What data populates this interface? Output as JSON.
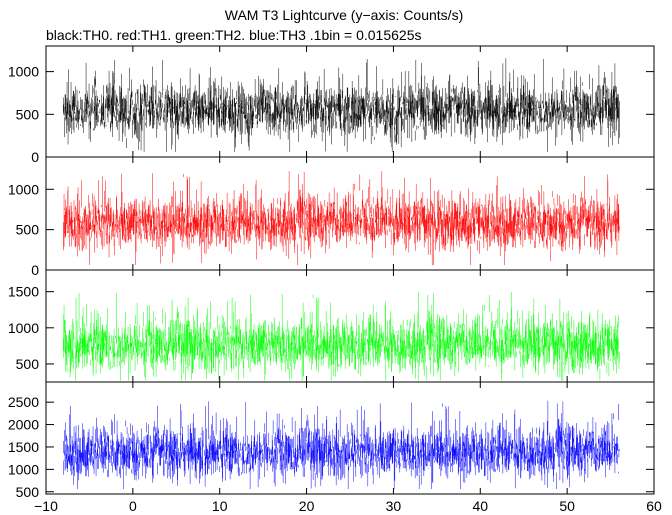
{
  "title": "WAM T3 Lightcurve (y−axis: Counts/s)",
  "subtitle": "black:TH0. red:TH1. green:TH2. blue:TH3 .1bin = 0.015625s",
  "chart_data": {
    "type": "line",
    "title": "WAM T3 Lightcurve (y−axis: Counts/s)",
    "subtitle": "black:TH0. red:TH1. green:TH2. blue:TH3 .1bin = 0.015625s",
    "xlabel": "",
    "ylabel": "",
    "x_range": [
      -8,
      56
    ],
    "xlim": [
      -10,
      60
    ],
    "x_ticks": [
      -10,
      0,
      10,
      20,
      30,
      40,
      50,
      60
    ],
    "x_tick_labels": [
      "−10",
      "0",
      "10",
      "20",
      "30",
      "40",
      "50",
      "60"
    ],
    "grid": false,
    "legend": "in subtitle text",
    "panels": [
      {
        "series": "TH0",
        "color": "#000000",
        "ylim": [
          0,
          1300
        ],
        "y_ticks": [
          0,
          500,
          1000
        ],
        "y_tick_labels": [
          "0",
          "500",
          "1000"
        ],
        "typical_band": [
          350,
          750
        ],
        "mean": 550,
        "range": [
          60,
          1300
        ]
      },
      {
        "series": "TH1",
        "color": "#ff0000",
        "ylim": [
          0,
          1400
        ],
        "y_ticks": [
          0,
          500,
          1000
        ],
        "y_tick_labels": [
          "0",
          "500",
          "1000"
        ],
        "typical_band": [
          380,
          800
        ],
        "mean": 580,
        "range": [
          60,
          1400
        ]
      },
      {
        "series": "TH2",
        "color": "#00ff00",
        "ylim": [
          250,
          1800
        ],
        "y_ticks": [
          500,
          1000,
          1500
        ],
        "y_tick_labels": [
          "500",
          "1000",
          "1500"
        ],
        "typical_band": [
          520,
          1000
        ],
        "mean": 760,
        "range": [
          270,
          1750
        ]
      },
      {
        "series": "TH3",
        "color": "#0000ff",
        "ylim": [
          450,
          2950
        ],
        "y_ticks": [
          500,
          1000,
          1500,
          2000,
          2500
        ],
        "y_tick_labels": [
          "500",
          "1000",
          "1500",
          "2000",
          "2500"
        ],
        "typical_band": [
          1000,
          1750
        ],
        "mean": 1380,
        "range": [
          560,
          2900
        ]
      }
    ]
  }
}
